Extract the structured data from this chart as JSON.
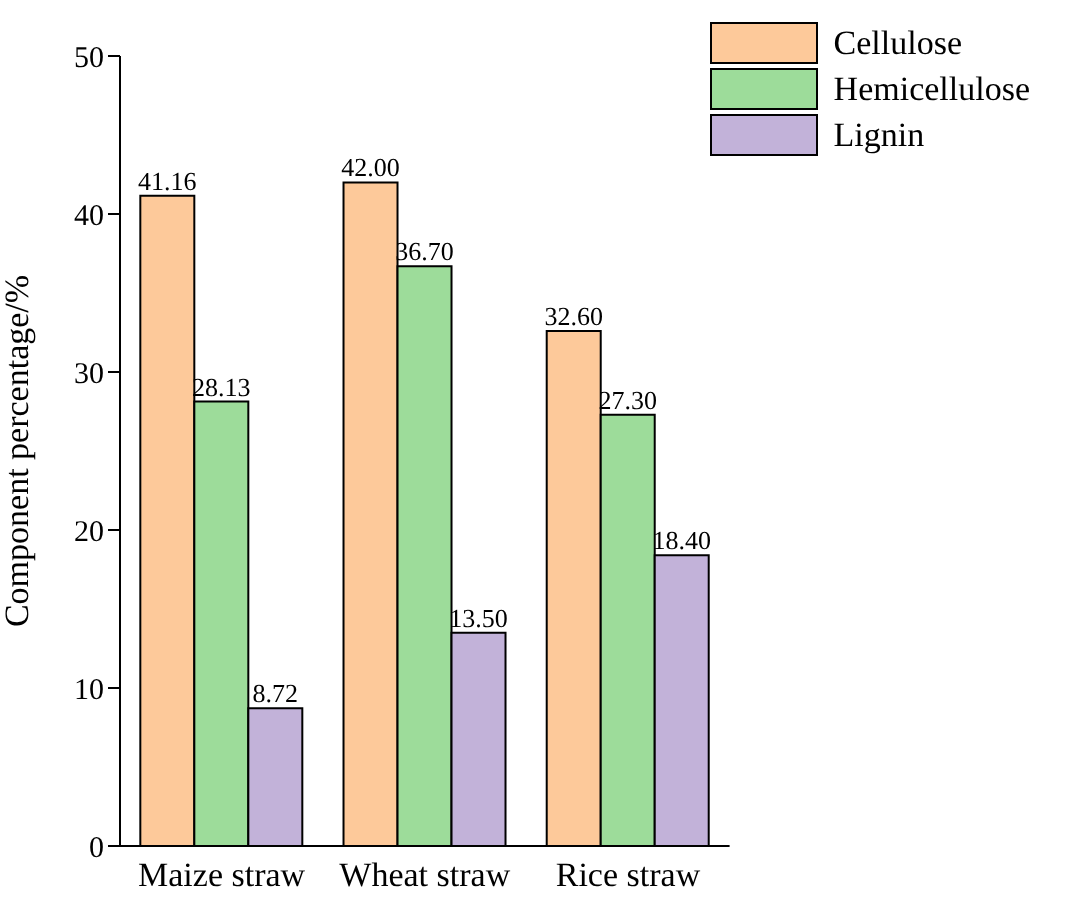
{
  "chart_data": {
    "type": "bar",
    "ylabel": "Component percentage/%",
    "categories": [
      "Maize straw",
      "Wheat straw",
      "Rice straw"
    ],
    "series": [
      {
        "name": "Cellulose",
        "color": "#fdc99a",
        "values": [
          41.16,
          42.0,
          32.6
        ],
        "value_labels": [
          "41.16",
          "42.00",
          "32.60"
        ]
      },
      {
        "name": "Hemicellulose",
        "color": "#9ddc9a",
        "values": [
          28.13,
          36.7,
          27.3
        ],
        "value_labels": [
          "28.13",
          "36.70",
          "27.30"
        ]
      },
      {
        "name": "Lignin",
        "color": "#c2b2d9",
        "values": [
          8.72,
          13.5,
          18.4
        ],
        "value_labels": [
          "8.72",
          "13.50",
          "18.40"
        ]
      }
    ],
    "ylim": [
      0,
      50
    ],
    "yticks": [
      0,
      10,
      20,
      30,
      40,
      50
    ],
    "grid": false,
    "legend": "top right"
  }
}
